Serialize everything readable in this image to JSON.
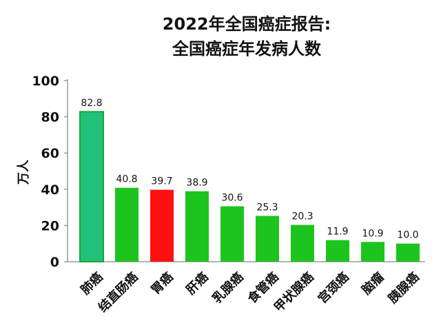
{
  "chart_data": {
    "type": "bar",
    "title_lines": [
      "2022年全国癌症报告:",
      "全国癌症年发病人数"
    ],
    "xlabel": "",
    "ylabel": "万人",
    "ylim": [
      0,
      100
    ],
    "yticks": [
      0,
      20,
      40,
      60,
      80,
      100
    ],
    "categories": [
      "肺癌",
      "结直肠癌",
      "胃癌",
      "肝癌",
      "乳腺癌",
      "食管癌",
      "甲状腺癌",
      "宫颈癌",
      "脑瘤",
      "胰腺癌"
    ],
    "values": [
      82.8,
      40.8,
      39.7,
      38.9,
      30.6,
      25.3,
      20.3,
      11.9,
      10.9,
      10.0
    ],
    "value_labels": [
      "82.8",
      "40.8",
      "39.7",
      "38.9",
      "30.6",
      "25.3",
      "20.3",
      "11.9",
      "10.9",
      "10.0"
    ],
    "bar_colors": [
      "#22c17a",
      "#1ec41e",
      "#ff1010",
      "#1ec41e",
      "#1ec41e",
      "#1ec41e",
      "#1ec41e",
      "#1ec41e",
      "#1ec41e",
      "#1ec41e"
    ],
    "grid": false,
    "legend": "none"
  }
}
